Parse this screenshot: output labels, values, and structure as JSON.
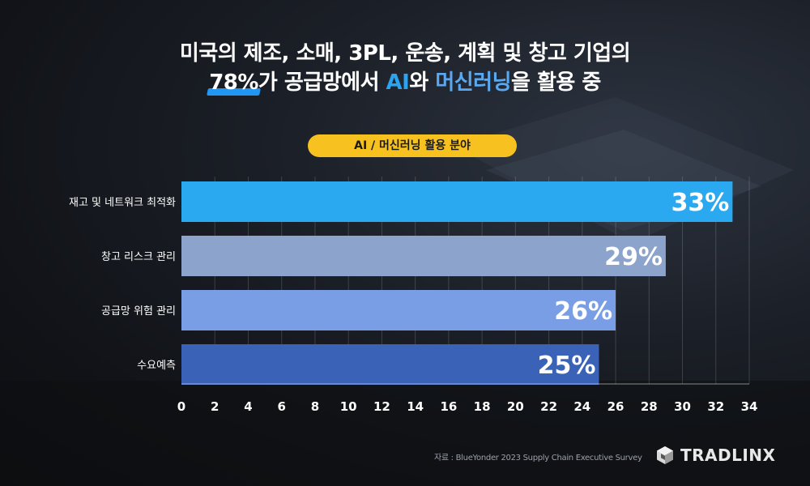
{
  "title": {
    "line1": "미국의 제조, 소매, 3PL, 운송, 계획 및 창고 기업의",
    "line2_highlight": "78%",
    "line2_part1": "가 공급망에서 ",
    "line2_ai": "AI",
    "line2_part2": "와 ",
    "line2_ml": "머신러닝",
    "line2_part3": "을 활용 중"
  },
  "pill_label": "AI / 머신러닝 활용 분야",
  "chart_data": {
    "type": "bar",
    "orientation": "horizontal",
    "categories": [
      "재고 및 네트워크 최적화",
      "창고 리스크 관리",
      "공급망 위험 관리",
      "수요예측"
    ],
    "values": [
      33,
      29,
      26,
      25
    ],
    "value_labels": [
      "33%",
      "29%",
      "26%",
      "25%"
    ],
    "bar_colors": [
      "#2aa8f0",
      "#8ca3cc",
      "#7a9ee6",
      "#3a63b8"
    ],
    "xlim": [
      0,
      34
    ],
    "xticks": [
      0,
      2,
      4,
      6,
      8,
      10,
      12,
      14,
      16,
      18,
      20,
      22,
      24,
      26,
      28,
      30,
      32,
      34
    ],
    "grid": true
  },
  "source": "자료 : BlueYonder 2023 Supply Chain Executive Survey",
  "logo": {
    "text": "TRADLINX",
    "icon": "tradlinx-cube-icon"
  }
}
